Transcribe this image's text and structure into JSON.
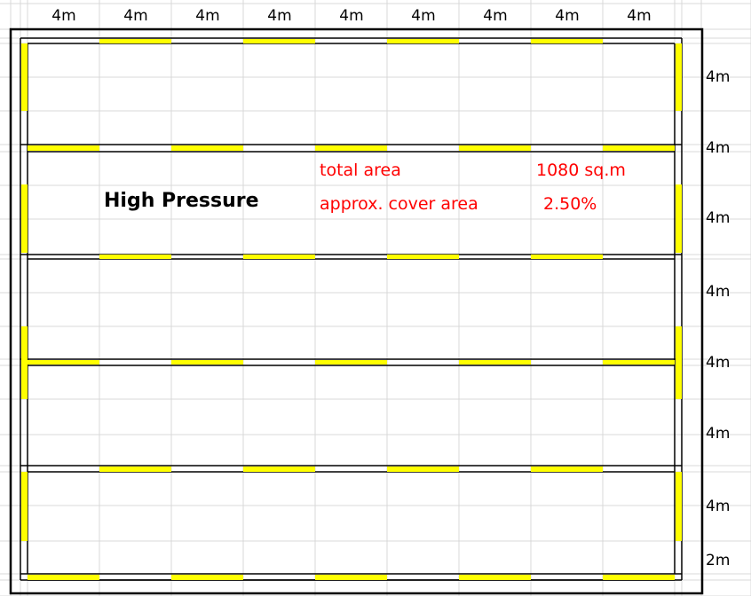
{
  "title": "High Pressure",
  "top_labels": [
    "4m",
    "4m",
    "4m",
    "4m",
    "4m",
    "4m",
    "4m",
    "4m",
    "4m"
  ],
  "right_labels": [
    "4m",
    "4m",
    "4m",
    "4m",
    "4m",
    "4m",
    "4m",
    "2m"
  ],
  "info": {
    "total_area_label": "total area",
    "total_area_value": "1080 sq.m",
    "cover_area_label": "approx. cover area",
    "cover_area_value": "2.50%"
  },
  "colors": {
    "highlight": "#ffff00",
    "info_text": "#ff0000",
    "gridline": "#d9d9d9"
  }
}
